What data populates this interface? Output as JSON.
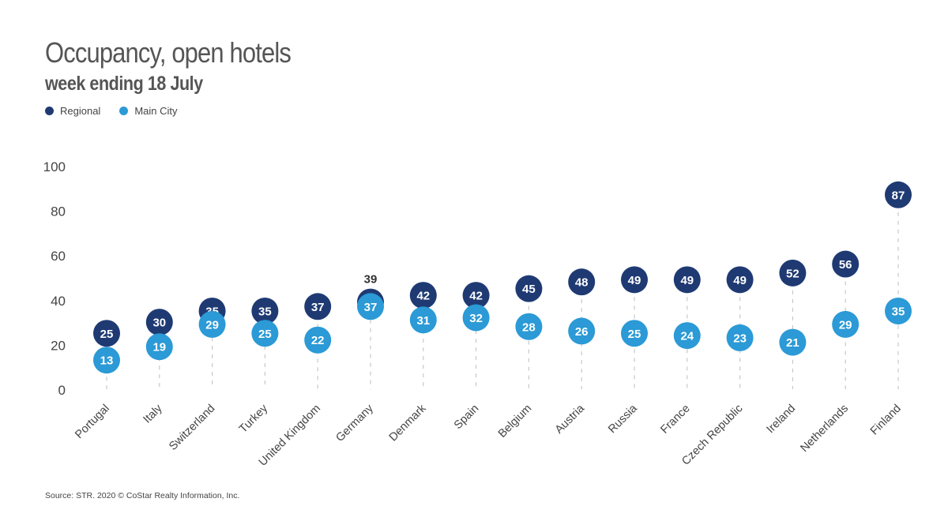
{
  "title": "Occupancy, open hotels",
  "subtitle": "week ending 18 July",
  "source": "Source: STR. 2020 © CoStar Realty Information, Inc.",
  "colors": {
    "regional": "#1f3a73",
    "main_city": "#2b9ad6",
    "axis_text": "#444444",
    "dash": "#c8c8c8"
  },
  "legend": [
    {
      "name": "Regional",
      "color": "#1f3a73"
    },
    {
      "name": "Main City",
      "color": "#2b9ad6"
    }
  ],
  "chart_data": {
    "type": "scatter",
    "title": "Occupancy, open hotels",
    "subtitle": "week ending 18 July",
    "xlabel": "",
    "ylabel": "",
    "ylim": [
      0,
      100
    ],
    "yticks": [
      0,
      20,
      40,
      60,
      80,
      100
    ],
    "grid": false,
    "legend_position": "top-left",
    "categories": [
      "Portugal",
      "Italy",
      "Switzerland",
      "Turkey",
      "United Kingdom",
      "Germany",
      "Denmark",
      "Spain",
      "Belgium",
      "Austria",
      "Russia",
      "France",
      "Czech Republic",
      "Ireland",
      "Netherlands",
      "Finland"
    ],
    "series": [
      {
        "name": "Regional",
        "values": [
          25,
          30,
          35,
          35,
          37,
          39,
          42,
          42,
          45,
          48,
          49,
          49,
          49,
          52,
          56,
          87
        ]
      },
      {
        "name": "Main City",
        "values": [
          13,
          19,
          29,
          25,
          22,
          37,
          31,
          32,
          28,
          26,
          25,
          24,
          23,
          21,
          29,
          35
        ]
      }
    ]
  }
}
